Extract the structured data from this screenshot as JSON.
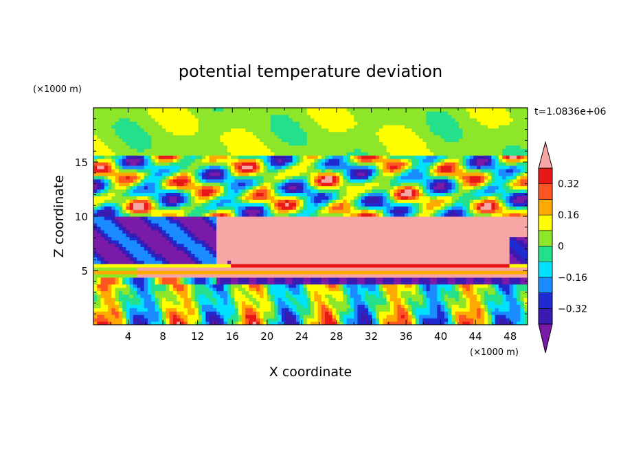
{
  "chart_data": {
    "type": "heatmap",
    "title": "potential temperature deviation",
    "xlabel": "X coordinate",
    "ylabel": "Z coordinate",
    "x_unit": "(×1000 m)",
    "y_unit": "(×1000 m)",
    "time_label": "t=1.0836e+06",
    "xlim": [
      0,
      50
    ],
    "ylim": [
      0,
      20
    ],
    "x_ticks": [
      4,
      8,
      12,
      16,
      20,
      24,
      28,
      32,
      36,
      40,
      44,
      48
    ],
    "x_tick_labels": [
      "4",
      "8",
      "12",
      "16",
      "20",
      "24",
      "28",
      "32",
      "36",
      "40",
      "44",
      "48"
    ],
    "y_ticks": [
      5,
      10,
      15
    ],
    "y_tick_labels": [
      "5",
      "10",
      "15"
    ],
    "colorbar": {
      "levels": [
        -0.4,
        -0.32,
        -0.24,
        -0.16,
        -0.08,
        0,
        0.08,
        0.16,
        0.24,
        0.32,
        0.4
      ],
      "labels": [
        "0.32",
        "0.16",
        "0",
        "−0.16",
        "−0.32"
      ],
      "label_values": [
        0.32,
        0.16,
        0,
        -0.16,
        -0.32
      ],
      "colors": [
        "#7a1aa8",
        "#3a1ab0",
        "#1f2ad0",
        "#1a8cff",
        "#00e0ff",
        "#25e08a",
        "#8ee62a",
        "#ffff00",
        "#ffaa00",
        "#ff5522",
        "#e81818",
        "#f7a5a5"
      ],
      "extend": "both"
    }
  },
  "colors": {
    "frame": "#000000",
    "background": "#ffffff"
  }
}
